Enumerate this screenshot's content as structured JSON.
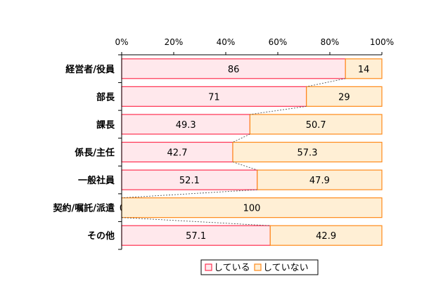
{
  "chart_data": {
    "type": "bar",
    "orientation": "horizontal",
    "stacked": "percent",
    "categories": [
      "経営者/役員",
      "部長",
      "課長",
      "係長/主任",
      "一般社員",
      "契約/嘱託/派遣",
      "その他"
    ],
    "series": [
      {
        "name": "している",
        "values": [
          86,
          71,
          49.3,
          42.7,
          52.1,
          0,
          57.1
        ],
        "labels": [
          "86",
          "71",
          "49.3",
          "42.7",
          "52.1",
          "0",
          "57.1"
        ],
        "color": "#ff3050",
        "fill": "#ffe8ec"
      },
      {
        "name": "していない",
        "values": [
          14,
          29,
          50.7,
          57.3,
          47.9,
          100,
          42.9
        ],
        "labels": [
          "14",
          "29",
          "50.7",
          "57.3",
          "47.9",
          "100",
          "42.9"
        ],
        "color": "#ff8a1a",
        "fill": "#ffefd5"
      }
    ],
    "xticks": [
      "0%",
      "20%",
      "40%",
      "60%",
      "80%",
      "100%"
    ],
    "xlim": [
      0,
      100
    ],
    "series_lines": true,
    "legend_position": "bottom"
  }
}
